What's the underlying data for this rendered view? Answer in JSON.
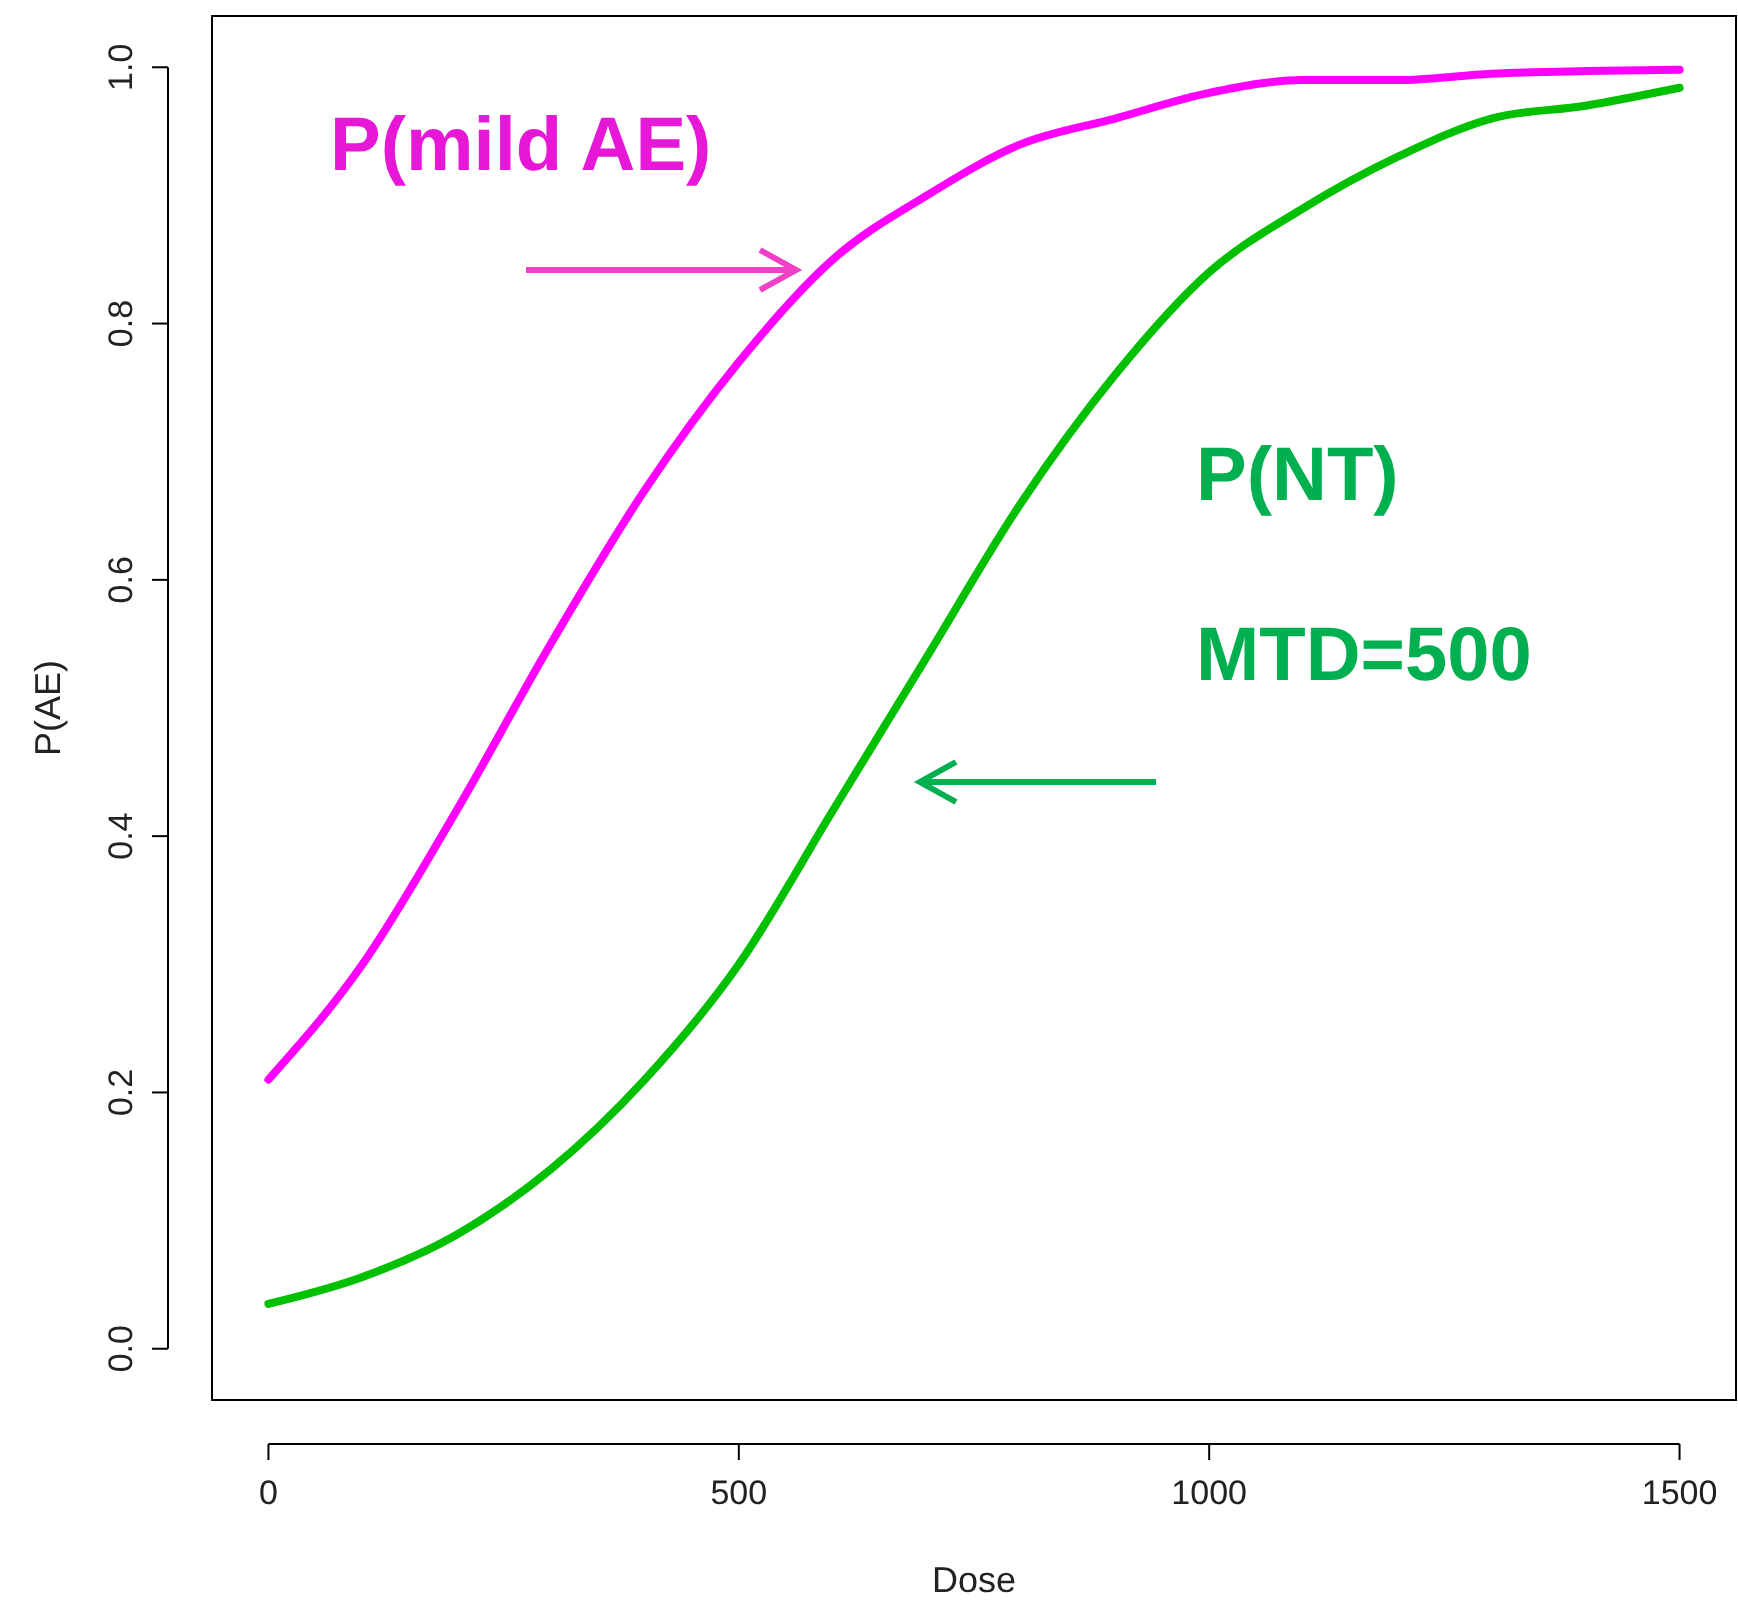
{
  "chart_data": {
    "type": "line",
    "xlabel": "Dose",
    "ylabel": "P(AE)",
    "x": [
      0,
      100,
      200,
      300,
      400,
      500,
      600,
      700,
      800,
      900,
      1000,
      1100,
      1200,
      1300,
      1400,
      1500
    ],
    "series": [
      {
        "name": "P(mild AE)",
        "color": "#ff00ff",
        "values": [
          0.21,
          0.3,
          0.42,
          0.55,
          0.67,
          0.77,
          0.85,
          0.9,
          0.94,
          0.96,
          0.98,
          0.99,
          0.99,
          0.995,
          0.997,
          0.998
        ]
      },
      {
        "name": "P(NT)",
        "color": "#00c000",
        "values": [
          0.035,
          0.056,
          0.089,
          0.14,
          0.21,
          0.3,
          0.42,
          0.54,
          0.66,
          0.76,
          0.84,
          0.89,
          0.93,
          0.96,
          0.97,
          0.984
        ]
      }
    ],
    "annotations": [
      "MTD=500"
    ],
    "xlim": [
      -60,
      1560
    ],
    "ylim": [
      -0.04,
      1.04
    ],
    "xticks": [
      0,
      500,
      1000,
      1500
    ],
    "yticks": [
      {
        "value": 0,
        "label": "0.0"
      },
      0.2,
      0.4,
      0.6,
      0.8,
      {
        "value": 1,
        "label": "1.0"
      }
    ],
    "grid": false,
    "marker": "none",
    "line_style": "solid"
  }
}
